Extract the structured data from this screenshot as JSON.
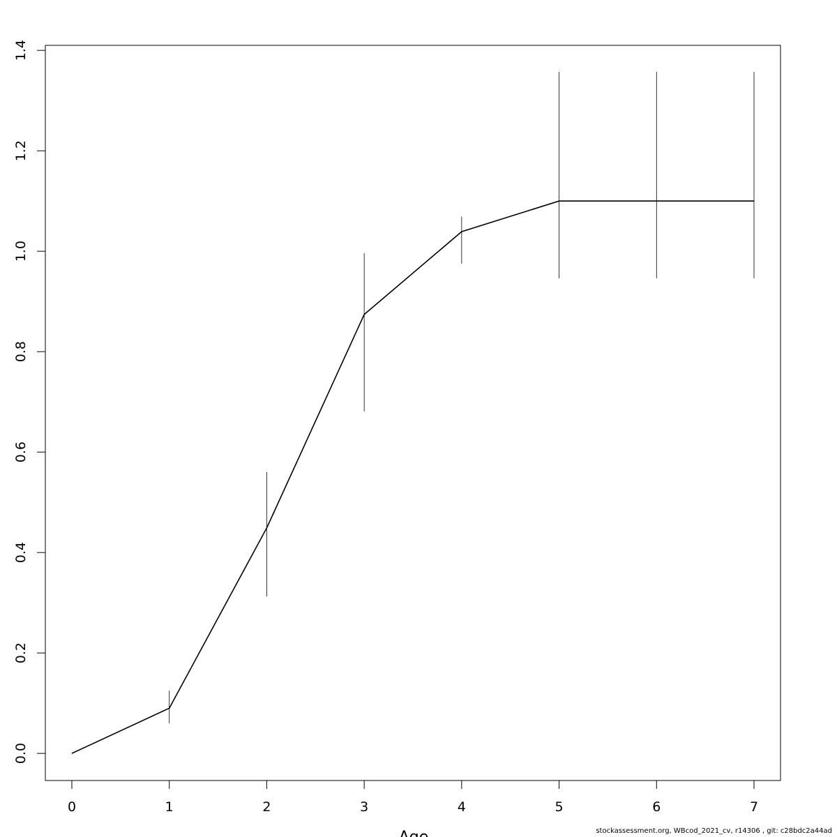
{
  "chart_data": {
    "type": "line",
    "x_label": "Age",
    "footer": "stockassessment.org, WBcod_2021_cv, r14306 , git: c28bdc2a44ad",
    "x": [
      0,
      1,
      2,
      3,
      4,
      5,
      6,
      7
    ],
    "series": [
      {
        "color": "#000000",
        "values": [
          0,
          0.09,
          0.449,
          0.874,
          1.039,
          1.1,
          1.1,
          1.1
        ],
        "lower": [
          null,
          0.06,
          0.3125,
          0.681,
          0.975,
          0.946,
          0.946,
          0.946
        ],
        "upper": [
          null,
          0.125,
          0.56,
          0.996,
          1.069,
          1.357,
          1.357,
          1.357
        ]
      }
    ],
    "xlim": [
      -0.272,
      7.272
    ],
    "ylim": [
      -0.054,
      1.41
    ],
    "xticks": [
      0,
      1,
      2,
      3,
      4,
      5,
      6,
      7
    ],
    "yticks": [
      {
        "value": 0,
        "label": "0.0"
      },
      0.2,
      0.4,
      0.6,
      0.8,
      {
        "value": 1,
        "label": "1.0"
      },
      1.2,
      1.4
    ]
  }
}
